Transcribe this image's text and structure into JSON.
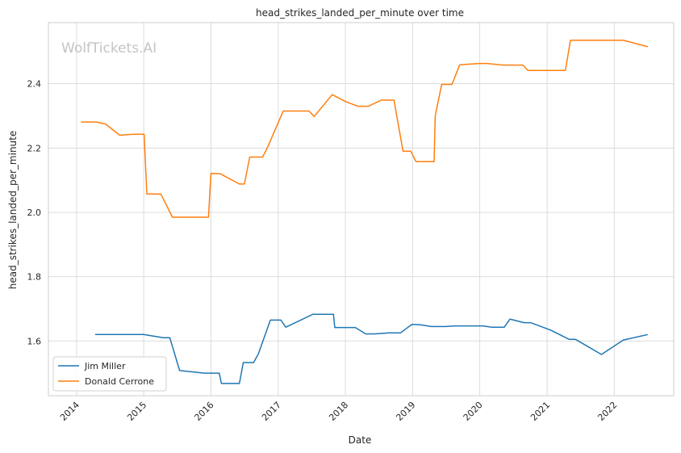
{
  "chart_data": {
    "type": "line",
    "title": "head_strikes_landed_per_minute over time",
    "xlabel": "Date",
    "ylabel": "head_strikes_landed_per_minute",
    "watermark": "WolfTickets.AI",
    "xlim": [
      "2013-08-01",
      "2022-11-20"
    ],
    "ylim": [
      1.43,
      2.59
    ],
    "x_ticks": [
      "2014",
      "2015",
      "2016",
      "2017",
      "2018",
      "2019",
      "2020",
      "2021",
      "2022"
    ],
    "y_ticks": [
      1.6,
      1.8,
      2.0,
      2.2,
      2.4
    ],
    "grid": true,
    "legend": "lower-left",
    "series": [
      {
        "name": "Jim Miller",
        "color": "#1f77b4",
        "points": [
          [
            "2014-04-12",
            1.62
          ],
          [
            "2015-01-01",
            1.62
          ],
          [
            "2015-04-18",
            1.61
          ],
          [
            "2015-05-23",
            1.61
          ],
          [
            "2015-07-15",
            1.508
          ],
          [
            "2015-11-28",
            1.5
          ],
          [
            "2016-02-15",
            1.5
          ],
          [
            "2016-02-27",
            1.468
          ],
          [
            "2016-06-04",
            1.468
          ],
          [
            "2016-06-25",
            1.533
          ],
          [
            "2016-08-20",
            1.533
          ],
          [
            "2016-09-15",
            1.56
          ],
          [
            "2016-11-19",
            1.665
          ],
          [
            "2017-01-15",
            1.665
          ],
          [
            "2017-02-11",
            1.643
          ],
          [
            "2017-07-08",
            1.683
          ],
          [
            "2017-10-28",
            1.683
          ],
          [
            "2017-11-04",
            1.642
          ],
          [
            "2018-02-24",
            1.642
          ],
          [
            "2018-04-21",
            1.622
          ],
          [
            "2018-06-09",
            1.622
          ],
          [
            "2018-08-25",
            1.625
          ],
          [
            "2018-10-27",
            1.625
          ],
          [
            "2018-12-29",
            1.652
          ],
          [
            "2019-02-17",
            1.65
          ],
          [
            "2019-04-13",
            1.645
          ],
          [
            "2019-06-29",
            1.645
          ],
          [
            "2019-08-17",
            1.647
          ],
          [
            "2020-01-18",
            1.647
          ],
          [
            "2020-03-07",
            1.643
          ],
          [
            "2020-05-13",
            1.643
          ],
          [
            "2020-06-13",
            1.668
          ],
          [
            "2020-08-29",
            1.657
          ],
          [
            "2020-10-03",
            1.657
          ],
          [
            "2021-01-20",
            1.634
          ],
          [
            "2021-05-01",
            1.605
          ],
          [
            "2021-06-05",
            1.605
          ],
          [
            "2021-10-23",
            1.558
          ],
          [
            "2022-02-19",
            1.603
          ],
          [
            "2022-07-02",
            1.62
          ]
        ]
      },
      {
        "name": "Donald Cerrone",
        "color": "#ff7f0e",
        "points": [
          [
            "2014-01-25",
            2.281
          ],
          [
            "2014-04-19",
            2.281
          ],
          [
            "2014-06-07",
            2.275
          ],
          [
            "2014-08-23",
            2.24
          ],
          [
            "2014-11-08",
            2.243
          ],
          [
            "2015-01-03",
            2.243
          ],
          [
            "2015-01-18",
            2.057
          ],
          [
            "2015-04-04",
            2.057
          ],
          [
            "2015-06-06",
            1.985
          ],
          [
            "2015-12-19",
            1.985
          ],
          [
            "2016-01-01",
            2.121
          ],
          [
            "2016-02-21",
            2.12
          ],
          [
            "2016-06-04",
            2.088
          ],
          [
            "2016-07-01",
            2.088
          ],
          [
            "2016-07-30",
            2.172
          ],
          [
            "2016-10-08",
            2.172
          ],
          [
            "2016-11-06",
            2.205
          ],
          [
            "2017-01-28",
            2.315
          ],
          [
            "2017-06-17",
            2.315
          ],
          [
            "2017-07-15",
            2.298
          ],
          [
            "2017-10-21",
            2.366
          ],
          [
            "2017-12-30",
            2.345
          ],
          [
            "2018-03-10",
            2.33
          ],
          [
            "2018-05-06",
            2.33
          ],
          [
            "2018-07-14",
            2.349
          ],
          [
            "2018-09-22",
            2.349
          ],
          [
            "2018-11-10",
            2.19
          ],
          [
            "2018-12-22",
            2.19
          ],
          [
            "2019-01-19",
            2.158
          ],
          [
            "2019-04-28",
            2.158
          ],
          [
            "2019-05-04",
            2.3
          ],
          [
            "2019-06-08",
            2.398
          ],
          [
            "2019-08-03",
            2.398
          ],
          [
            "2019-09-14",
            2.459
          ],
          [
            "2019-12-28",
            2.463
          ],
          [
            "2020-02-08",
            2.463
          ],
          [
            "2020-05-09",
            2.458
          ],
          [
            "2020-08-22",
            2.458
          ],
          [
            "2020-09-19",
            2.441
          ],
          [
            "2021-04-10",
            2.441
          ],
          [
            "2021-05-08",
            2.535
          ],
          [
            "2022-02-19",
            2.535
          ],
          [
            "2022-07-02",
            2.515
          ]
        ]
      }
    ]
  }
}
